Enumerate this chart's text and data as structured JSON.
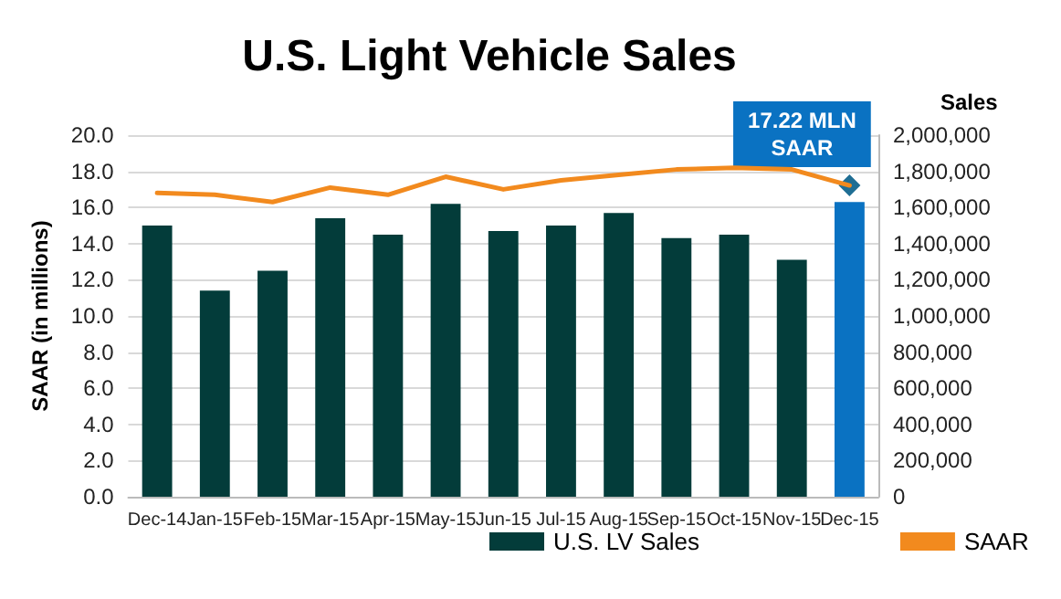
{
  "chart_data": {
    "type": "bar",
    "title": "U.S. Light Vehicle Sales",
    "ylabel": "SAAR (in millions)",
    "y2label": "Sales",
    "categories": [
      "Dec-14",
      "Jan-15",
      "Feb-15",
      "Mar-15",
      "Apr-15",
      "May-15",
      "Jun-15",
      "Jul-15",
      "Aug-15",
      "Sep-15",
      "Oct-15",
      "Nov-15",
      "Dec-15"
    ],
    "series": [
      {
        "name": "U.S. LV Sales",
        "axis": "y2",
        "color": "#033c3a",
        "colors": [
          "#033c3a",
          "#033c3a",
          "#033c3a",
          "#033c3a",
          "#033c3a",
          "#033c3a",
          "#033c3a",
          "#033c3a",
          "#033c3a",
          "#033c3a",
          "#033c3a",
          "#033c3a",
          "#0a72c2"
        ],
        "values": [
          1500000,
          1140000,
          1250000,
          1540000,
          1450000,
          1620000,
          1470000,
          1500000,
          1570000,
          1430000,
          1450000,
          1310000,
          1630000
        ]
      },
      {
        "name": "SAAR",
        "type": "line",
        "color": "#f28a1e",
        "values": [
          16.8,
          16.7,
          16.3,
          17.1,
          16.7,
          17.7,
          17.0,
          17.5,
          17.8,
          18.1,
          18.2,
          18.1,
          17.22
        ]
      }
    ],
    "annotations": [
      {
        "text": "17.22 MLN\nSAAR",
        "x": "Dec-15",
        "y": 17.22
      }
    ],
    "ylim": [
      0,
      20
    ],
    "yticks": [
      {
        "value": 0,
        "label": "0.0"
      },
      {
        "value": 2,
        "label": "2.0"
      },
      {
        "value": 4,
        "label": "4.0"
      },
      {
        "value": 6,
        "label": "6.0"
      },
      {
        "value": 8,
        "label": "8.0"
      },
      {
        "value": 10,
        "label": "10.0"
      },
      {
        "value": 12,
        "label": "12.0"
      },
      {
        "value": 14,
        "label": "14.0"
      },
      {
        "value": 16,
        "label": "16.0"
      },
      {
        "value": 18,
        "label": "18.0"
      },
      {
        "value": 20,
        "label": "20.0"
      }
    ],
    "y2lim": [
      0,
      2000000
    ],
    "y2ticks": [
      0,
      {
        "value": 200000,
        "label": "200,000"
      },
      {
        "value": 400000,
        "label": "400,000"
      },
      {
        "value": 600000,
        "label": "600,000"
      },
      {
        "value": 800000,
        "label": "800,000"
      },
      {
        "value": 1000000,
        "label": "1,000,000"
      },
      {
        "value": 1200000,
        "label": "1,200,000"
      },
      {
        "value": 1400000,
        "label": "1,400,000"
      },
      {
        "value": 1600000,
        "label": "1,600,000"
      },
      {
        "value": 1800000,
        "label": "1,800,000"
      },
      {
        "value": 2000000,
        "label": "2,000,000"
      }
    ],
    "grid": "y",
    "legend": "bottom",
    "marker": "none",
    "line_style": "solid"
  }
}
